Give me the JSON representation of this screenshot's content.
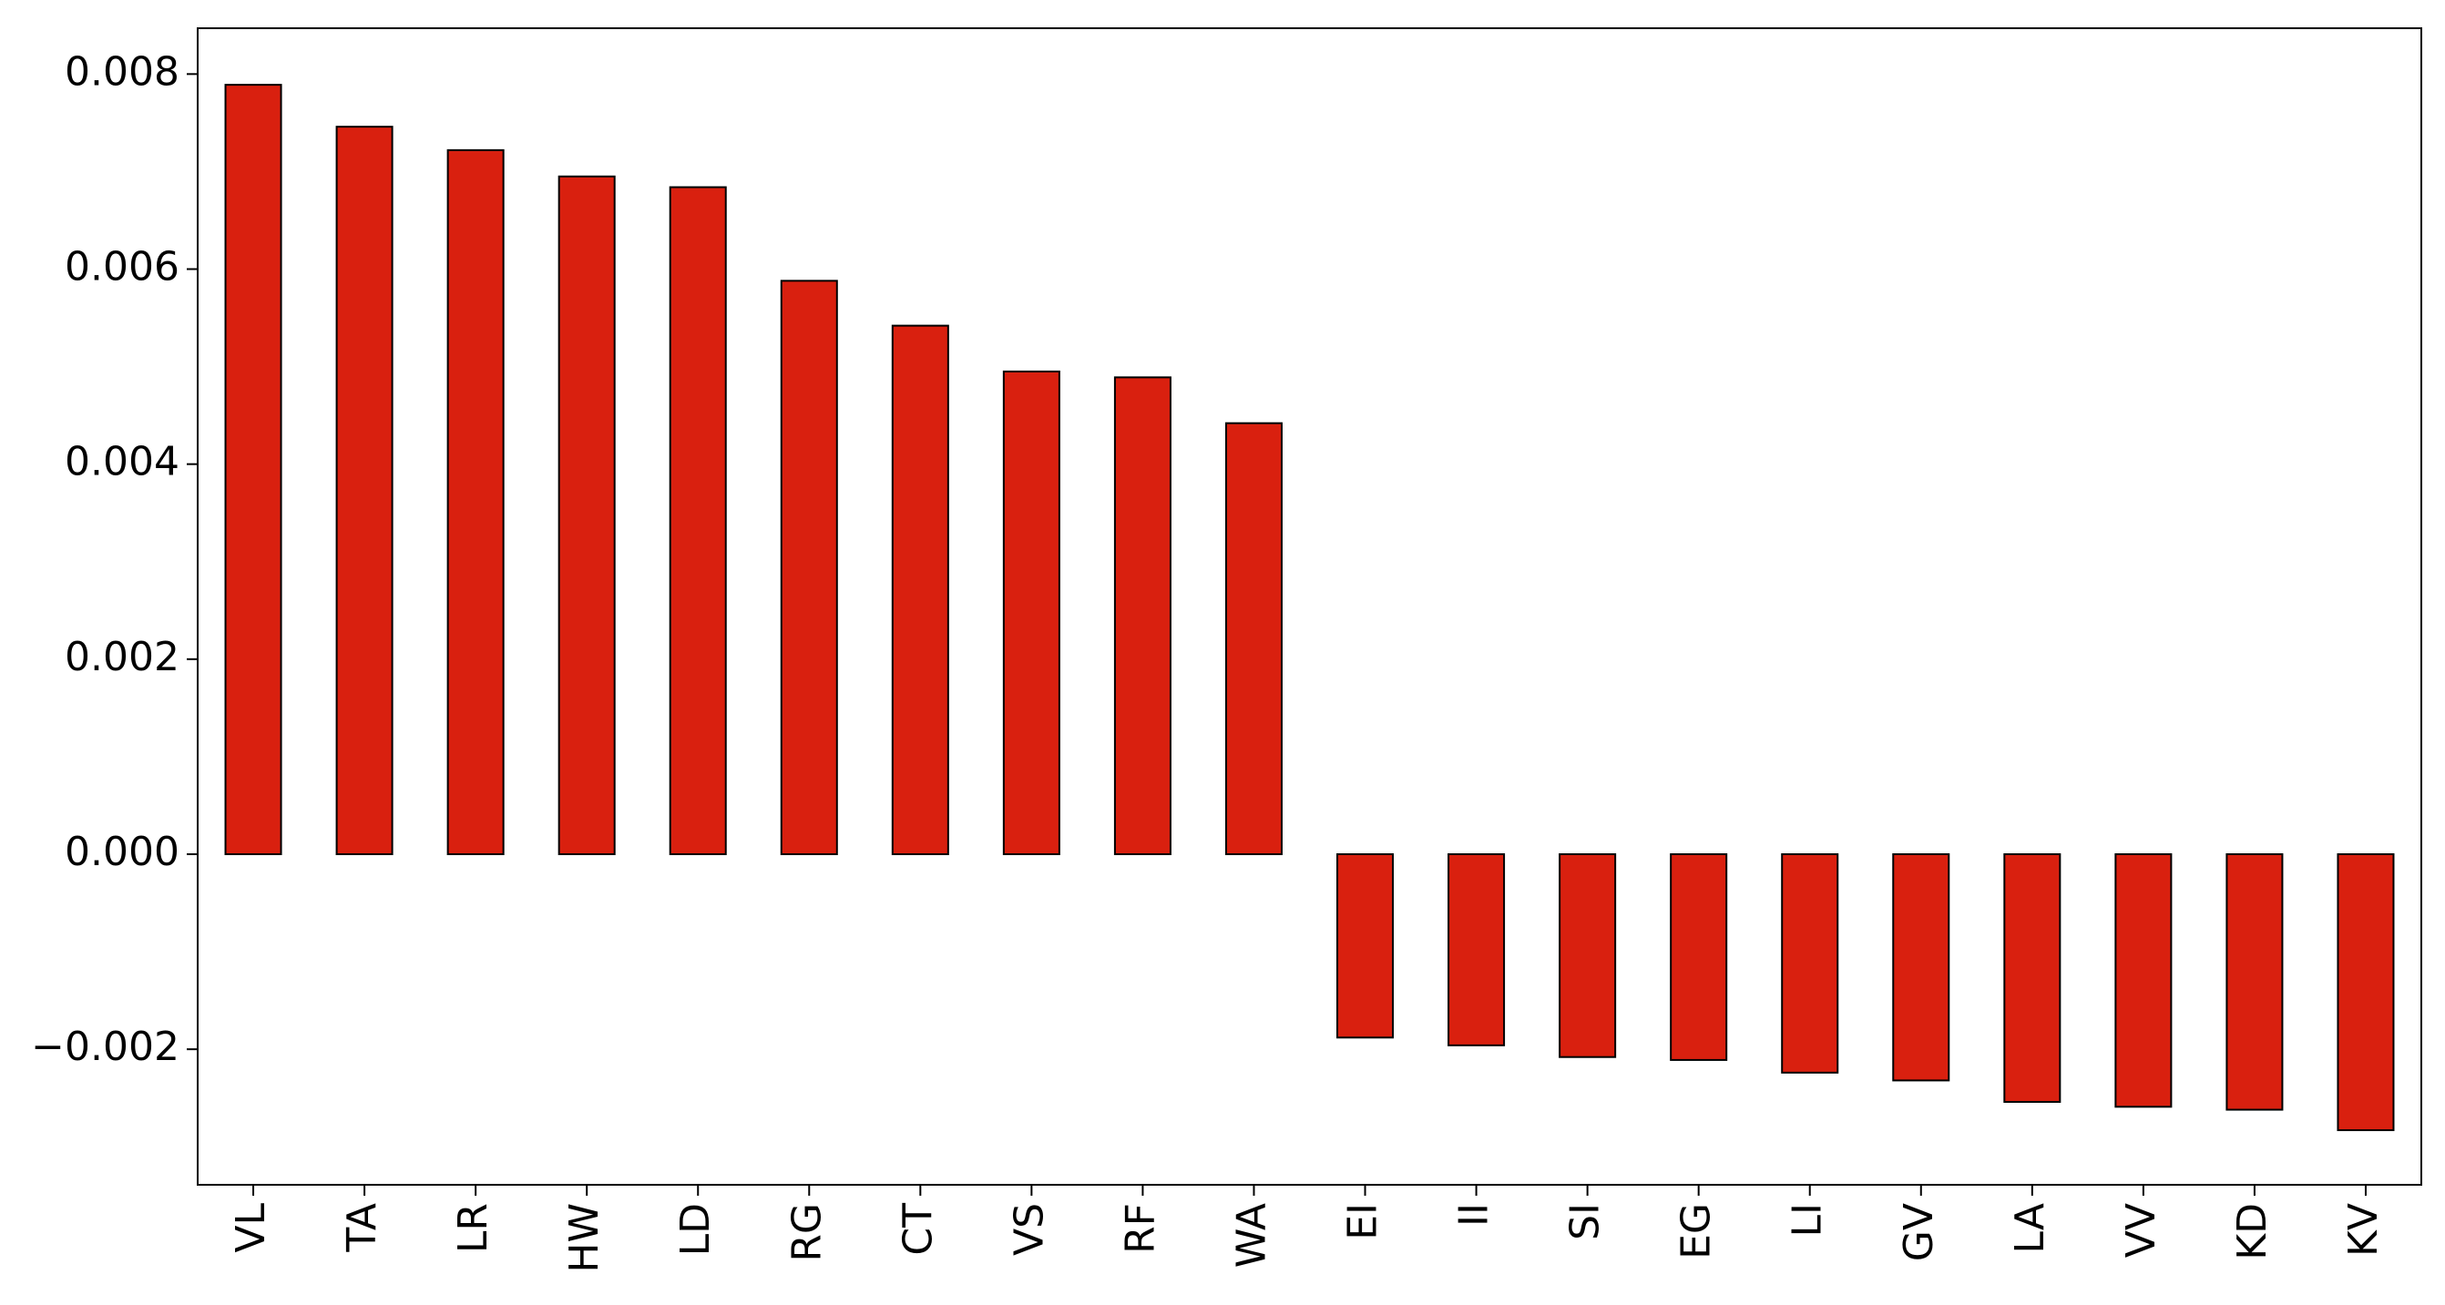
{
  "chart_data": {
    "type": "bar",
    "categories": [
      "VL",
      "TA",
      "LR",
      "HW",
      "LD",
      "RG",
      "CT",
      "VS",
      "RF",
      "WA",
      "EI",
      "II",
      "SI",
      "EG",
      "LI",
      "GV",
      "LA",
      "VV",
      "KD",
      "KV"
    ],
    "values": [
      0.00789,
      0.00746,
      0.00722,
      0.00695,
      0.00684,
      0.00588,
      0.00542,
      0.00495,
      0.00489,
      0.00442,
      -0.00188,
      -0.00196,
      -0.00208,
      -0.00211,
      -0.00224,
      -0.00232,
      -0.00254,
      -0.00259,
      -0.00262,
      -0.00283
    ],
    "color": "#d9200f",
    "ylim": [
      -0.00339,
      0.00847
    ],
    "yticks": [
      {
        "value": -0.002,
        "label": "−0.002"
      },
      {
        "value": 0,
        "label": "0.000"
      },
      0.002,
      0.004,
      0.006,
      0.008
    ]
  }
}
